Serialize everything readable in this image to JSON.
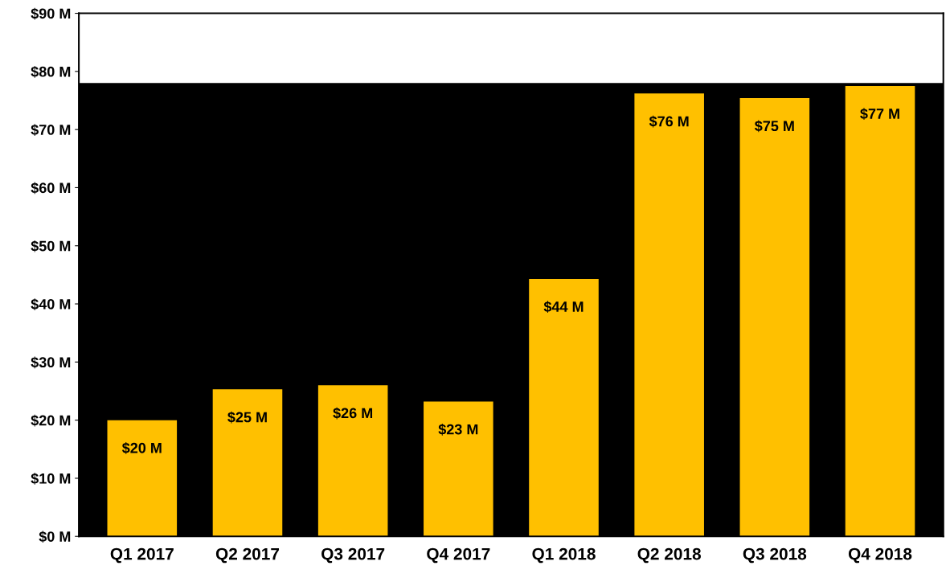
{
  "chart_data": {
    "type": "bar",
    "categories": [
      "Q1 2017",
      "Q2 2017",
      "Q3 2017",
      "Q4 2017",
      "Q1 2018",
      "Q2 2018",
      "Q3 2018",
      "Q4 2018"
    ],
    "values": [
      20,
      25.3,
      26,
      23.2,
      44.3,
      76.2,
      75.4,
      77.5
    ],
    "value_labels": [
      "$20 M",
      "$25 M",
      "$26 M",
      "$23 M",
      "$44 M",
      "$76 M",
      "$75 M",
      "$77 M"
    ],
    "color": "#ffc000",
    "ylim": [
      0,
      90
    ],
    "yticks": [
      {
        "value": 0,
        "label": "$0 M"
      },
      {
        "value": 10,
        "label": "$10 M"
      },
      {
        "value": 20,
        "label": "$20 M"
      },
      {
        "value": 30,
        "label": "$30 M"
      },
      {
        "value": 40,
        "label": "$40 M"
      },
      {
        "value": 50,
        "label": "$50 M"
      },
      {
        "value": 60,
        "label": "$60 M"
      },
      {
        "value": 70,
        "label": "$70 M"
      },
      {
        "value": 80,
        "label": "$80 M"
      },
      {
        "value": 90,
        "label": "$90 M"
      }
    ],
    "bands": [
      {
        "axis": "y",
        "from": 0,
        "to": 78,
        "color": "#000000"
      }
    ],
    "grid": false,
    "legend": false
  }
}
